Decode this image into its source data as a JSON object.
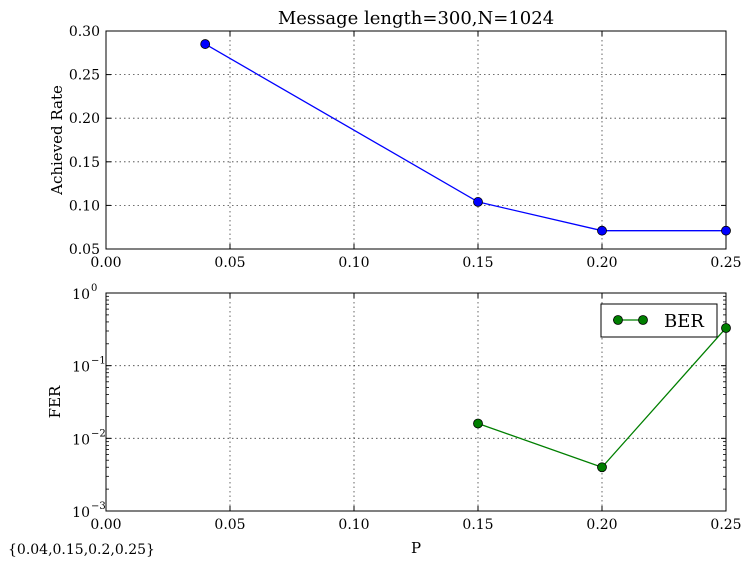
{
  "chart_data": [
    {
      "type": "line",
      "title": "Message length=300,N=1024",
      "xlabel": "",
      "ylabel": "Achieved Rate",
      "xlim": [
        0.0,
        0.25
      ],
      "ylim": [
        0.05,
        0.3
      ],
      "yscale": "linear",
      "grid": true,
      "x_ticks": [
        "0.00",
        "0.05",
        "0.10",
        "0.15",
        "0.20",
        "0.25"
      ],
      "y_ticks": [
        "0.05",
        "0.10",
        "0.15",
        "0.20",
        "0.25",
        "0.30"
      ],
      "series": [
        {
          "color": "#0000ff",
          "marker": "circle",
          "x": [
            0.04,
            0.15,
            0.2,
            0.25
          ],
          "y": [
            0.285,
            0.104,
            0.071,
            0.071
          ]
        }
      ]
    },
    {
      "type": "line",
      "title": "",
      "xlabel": "P",
      "ylabel": "FER",
      "xlim": [
        0.0,
        0.25
      ],
      "ylim": [
        0.001,
        1
      ],
      "yscale": "log",
      "grid": true,
      "legend_position": "top-right",
      "x_ticks": [
        "0.00",
        "0.05",
        "0.10",
        "0.15",
        "0.20",
        "0.25"
      ],
      "y_ticks": [
        {
          "base": "10",
          "exp": "−3"
        },
        {
          "base": "10",
          "exp": "−2"
        },
        {
          "base": "10",
          "exp": "−1"
        },
        {
          "base": "10",
          "exp": "0"
        }
      ],
      "series": [
        {
          "name": "BER",
          "color": "#007f00",
          "marker": "circle",
          "x": [
            0.15,
            0.2,
            0.25
          ],
          "y": [
            0.016,
            0.004,
            0.33
          ]
        }
      ]
    }
  ],
  "footnote": "{0.04,0.15,0.2,0.25}"
}
